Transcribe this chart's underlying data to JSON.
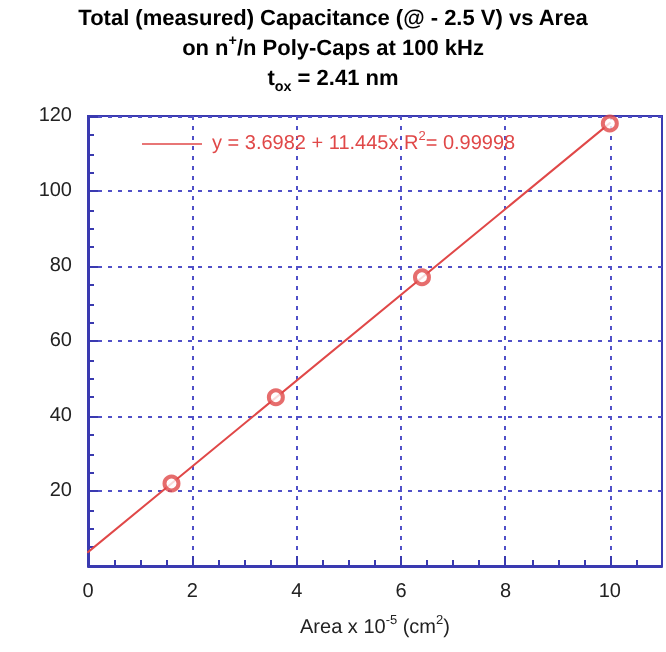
{
  "chart_data": {
    "type": "scatter",
    "title": "Total (measured) Capacitance (@ - 2.5 V) vs Area\non n$^{+}$/n Poly-Caps at 100 kHz\nt$_{ox}$ = 2.41 nm",
    "xlabel": "Area x 10$^{-5}$ (cm$^{2}$)",
    "series": [
      {
        "color": "#e04848",
        "marker": "circle",
        "x": [
          1.6,
          3.6,
          6.4,
          10.0
        ],
        "values": [
          22,
          45,
          77,
          118
        ]
      },
      {
        "type": "line",
        "name": "y = 3.6982 + 11.445x R$^{2}$= 0.99998",
        "color": "#e04848",
        "marker": "none",
        "x": [
          0,
          10
        ],
        "values": [
          3.7,
          118.1
        ]
      }
    ],
    "xlim": [
      0,
      11
    ],
    "xticks": [
      0,
      2,
      4,
      6,
      8,
      10
    ],
    "ylim": [
      0,
      120
    ],
    "yticks": [
      20,
      40,
      60,
      80,
      100,
      120
    ],
    "grid": true,
    "legend": "top left"
  }
}
